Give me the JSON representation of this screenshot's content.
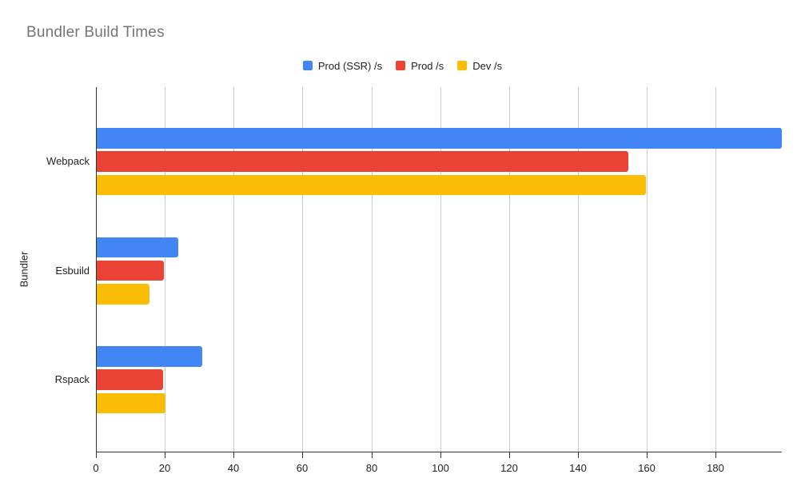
{
  "chart_data": {
    "type": "bar",
    "orientation": "horizontal",
    "title": "Bundler Build Times",
    "xlabel": "",
    "ylabel": "Bundler",
    "categories": [
      "Webpack",
      "Esbuild",
      "Rspack"
    ],
    "series": [
      {
        "name": "Prod (SSR) /s",
        "color": "#4285F4",
        "values": [
          199,
          23.6,
          30.6
        ]
      },
      {
        "name": "Prod /s",
        "color": "#EA4335",
        "values": [
          154.5,
          19.4,
          19.2
        ]
      },
      {
        "name": "Dev /s",
        "color": "#FBBC04",
        "values": [
          159.5,
          15.3,
          19.9
        ]
      }
    ],
    "xlim": [
      0,
      199
    ],
    "x_ticks": [
      0,
      20,
      40,
      60,
      80,
      100,
      120,
      140,
      160,
      180
    ],
    "grid": true,
    "legend_position": "top-center",
    "colors": {
      "title_text": "#757575",
      "axis_text": "#222222",
      "gridline": "#cccccc",
      "axis_line": "#333333",
      "background": "#ffffff"
    }
  }
}
